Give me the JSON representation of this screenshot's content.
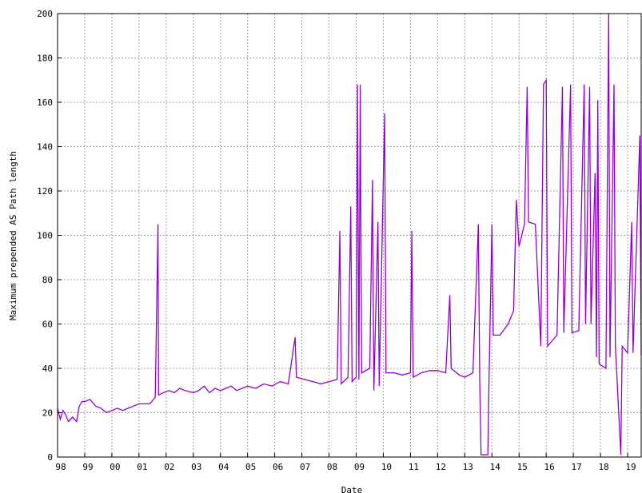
{
  "chart_data": {
    "type": "line",
    "xlabel": "Date",
    "ylabel": "Maximum prepended AS Path length",
    "xlim": [
      1998.0,
      2019.5
    ],
    "ylim": [
      0,
      200
    ],
    "x_ticks": [
      {
        "value": 1998,
        "label": "98"
      },
      {
        "value": 1999,
        "label": "99"
      },
      {
        "value": 2000,
        "label": "00"
      },
      {
        "value": 2001,
        "label": "01"
      },
      {
        "value": 2002,
        "label": "02"
      },
      {
        "value": 2003,
        "label": "03"
      },
      {
        "value": 2004,
        "label": "04"
      },
      {
        "value": 2005,
        "label": "05"
      },
      {
        "value": 2006,
        "label": "06"
      },
      {
        "value": 2007,
        "label": "07"
      },
      {
        "value": 2008,
        "label": "08"
      },
      {
        "value": 2009,
        "label": "09"
      },
      {
        "value": 2010,
        "label": "10"
      },
      {
        "value": 2011,
        "label": "11"
      },
      {
        "value": 2012,
        "label": "12"
      },
      {
        "value": 2013,
        "label": "13"
      },
      {
        "value": 2014,
        "label": "14"
      },
      {
        "value": 2015,
        "label": "15"
      },
      {
        "value": 2016,
        "label": "16"
      },
      {
        "value": 2017,
        "label": "17"
      },
      {
        "value": 2018,
        "label": "18"
      },
      {
        "value": 2019,
        "label": "19"
      }
    ],
    "y_ticks": [
      0,
      20,
      40,
      60,
      80,
      100,
      120,
      140,
      160,
      180,
      200
    ],
    "grid": true,
    "series": [
      {
        "color": "#9400d3",
        "points": [
          [
            1998.0,
            22
          ],
          [
            1998.1,
            17
          ],
          [
            1998.2,
            21
          ],
          [
            1998.3,
            19
          ],
          [
            1998.4,
            16
          ],
          [
            1998.55,
            18
          ],
          [
            1998.7,
            16
          ],
          [
            1998.8,
            23
          ],
          [
            1998.9,
            25
          ],
          [
            1999.0,
            25
          ],
          [
            1999.2,
            26
          ],
          [
            1999.4,
            23
          ],
          [
            1999.6,
            22
          ],
          [
            1999.8,
            20
          ],
          [
            2000.0,
            21
          ],
          [
            2000.2,
            22
          ],
          [
            2000.4,
            21
          ],
          [
            2000.6,
            22
          ],
          [
            2000.8,
            23
          ],
          [
            2001.0,
            24
          ],
          [
            2001.2,
            24
          ],
          [
            2001.4,
            24
          ],
          [
            2001.6,
            27
          ],
          [
            2001.7,
            105
          ],
          [
            2001.72,
            28
          ],
          [
            2001.9,
            29
          ],
          [
            2002.1,
            30
          ],
          [
            2002.3,
            29
          ],
          [
            2002.5,
            31
          ],
          [
            2002.7,
            30
          ],
          [
            2003.0,
            29
          ],
          [
            2003.2,
            30
          ],
          [
            2003.4,
            32
          ],
          [
            2003.6,
            29
          ],
          [
            2003.8,
            31
          ],
          [
            2004.0,
            30
          ],
          [
            2004.2,
            31
          ],
          [
            2004.4,
            32
          ],
          [
            2004.6,
            30
          ],
          [
            2004.8,
            31
          ],
          [
            2005.0,
            32
          ],
          [
            2005.3,
            31
          ],
          [
            2005.6,
            33
          ],
          [
            2005.9,
            32
          ],
          [
            2006.2,
            34
          ],
          [
            2006.5,
            33
          ],
          [
            2006.75,
            54
          ],
          [
            2006.8,
            36
          ],
          [
            2007.1,
            35
          ],
          [
            2007.4,
            34
          ],
          [
            2007.7,
            33
          ],
          [
            2008.0,
            34
          ],
          [
            2008.3,
            35
          ],
          [
            2008.4,
            102
          ],
          [
            2008.45,
            33
          ],
          [
            2008.7,
            36
          ],
          [
            2008.8,
            113
          ],
          [
            2008.85,
            34
          ],
          [
            2009.0,
            36
          ],
          [
            2009.05,
            168
          ],
          [
            2009.1,
            35
          ],
          [
            2009.15,
            168
          ],
          [
            2009.2,
            38
          ],
          [
            2009.5,
            40
          ],
          [
            2009.6,
            125
          ],
          [
            2009.65,
            30
          ],
          [
            2009.8,
            106
          ],
          [
            2009.85,
            32
          ],
          [
            2010.05,
            155
          ],
          [
            2010.1,
            38
          ],
          [
            2010.4,
            38
          ],
          [
            2010.7,
            37
          ],
          [
            2011.0,
            38
          ],
          [
            2011.05,
            102
          ],
          [
            2011.1,
            36
          ],
          [
            2011.4,
            38
          ],
          [
            2011.7,
            39
          ],
          [
            2012.0,
            39
          ],
          [
            2012.3,
            38
          ],
          [
            2012.45,
            73
          ],
          [
            2012.5,
            40
          ],
          [
            2012.8,
            37
          ],
          [
            2013.0,
            36
          ],
          [
            2013.3,
            38
          ],
          [
            2013.5,
            105
          ],
          [
            2013.55,
            35
          ],
          [
            2013.6,
            1
          ],
          [
            2013.85,
            1
          ],
          [
            2013.9,
            40
          ],
          [
            2014.0,
            105
          ],
          [
            2014.05,
            55
          ],
          [
            2014.3,
            55
          ],
          [
            2014.6,
            60
          ],
          [
            2014.8,
            66
          ],
          [
            2014.9,
            116
          ],
          [
            2015.0,
            95
          ],
          [
            2015.2,
            105
          ],
          [
            2015.3,
            167
          ],
          [
            2015.35,
            106
          ],
          [
            2015.6,
            105
          ],
          [
            2015.8,
            50
          ],
          [
            2015.9,
            168
          ],
          [
            2016.0,
            170
          ],
          [
            2016.05,
            50
          ],
          [
            2016.4,
            55
          ],
          [
            2016.6,
            167
          ],
          [
            2016.65,
            56
          ],
          [
            2016.9,
            168
          ],
          [
            2016.95,
            56
          ],
          [
            2017.2,
            57
          ],
          [
            2017.4,
            168
          ],
          [
            2017.45,
            60
          ],
          [
            2017.6,
            167
          ],
          [
            2017.65,
            60
          ],
          [
            2017.8,
            128
          ],
          [
            2017.85,
            45
          ],
          [
            2017.9,
            161
          ],
          [
            2017.95,
            42
          ],
          [
            2018.2,
            40
          ],
          [
            2018.3,
            200
          ],
          [
            2018.35,
            45
          ],
          [
            2018.5,
            168
          ],
          [
            2018.55,
            50
          ],
          [
            2018.75,
            1
          ],
          [
            2018.8,
            50
          ],
          [
            2019.0,
            47
          ],
          [
            2019.15,
            106
          ],
          [
            2019.2,
            47
          ],
          [
            2019.45,
            145
          ],
          [
            2019.5,
            46
          ]
        ]
      }
    ]
  }
}
